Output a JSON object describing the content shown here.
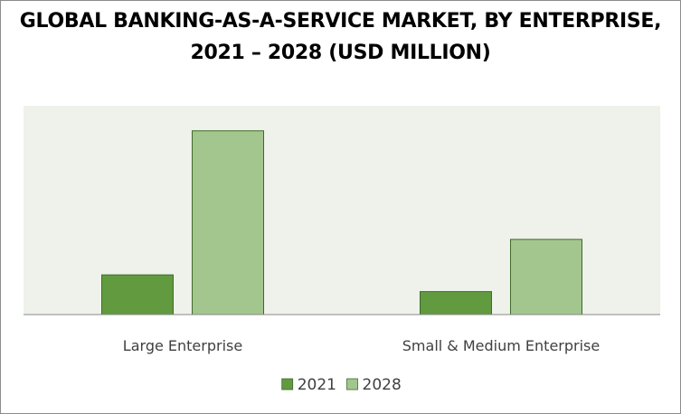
{
  "chart_data": {
    "type": "bar",
    "title": "GLOBAL BANKING-AS-A-SERVICE MARKET, BY ENTERPRISE, 2021 – 2028 (USD MILLION)",
    "xlabel": "",
    "ylabel": "",
    "categories": [
      "Large Enterprise",
      "Small & Medium Enterprise"
    ],
    "series": [
      {
        "name": "2021",
        "values": [
          19,
          11
        ],
        "color": "#629a40"
      },
      {
        "name": "2028",
        "values": [
          88,
          36
        ],
        "color": "#a3c68f"
      }
    ],
    "ylim": [
      0,
      100
    ],
    "grid": false,
    "axes_visible": false,
    "legend_position": "bottom-center",
    "plot_background": "#eef2ea",
    "bar_outline": "#3f6a2a",
    "border_color": "#8c8c8c"
  }
}
